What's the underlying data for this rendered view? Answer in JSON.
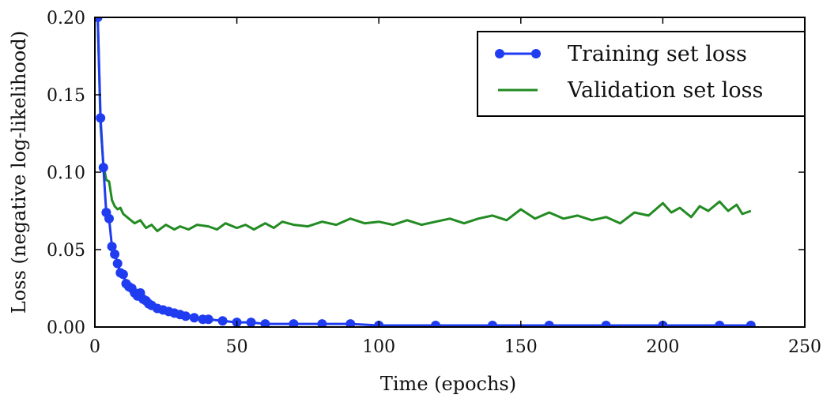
{
  "chart_data": {
    "type": "line",
    "title": "",
    "xlabel": "Time (epochs)",
    "ylabel": "Loss (negative log-likelihood)",
    "xlim": [
      0,
      250
    ],
    "ylim": [
      0.0,
      0.2
    ],
    "xticks": [
      "0",
      "50",
      "100",
      "150",
      "200",
      "250"
    ],
    "yticks": [
      "0.00",
      "0.05",
      "0.10",
      "0.15",
      "0.20"
    ],
    "grid": false,
    "legend_position": "top-right",
    "series": [
      {
        "name": "Training set loss",
        "color": "#1f3cf0",
        "marker": "circle",
        "x": [
          1,
          2,
          3,
          4,
          5,
          6,
          7,
          8,
          9,
          10,
          11,
          12,
          13,
          14,
          15,
          16,
          17,
          18,
          19,
          20,
          22,
          24,
          26,
          28,
          30,
          32,
          35,
          38,
          40,
          45,
          50,
          55,
          60,
          70,
          80,
          90,
          100,
          120,
          140,
          160,
          180,
          200,
          220,
          231
        ],
        "y": [
          0.2,
          0.135,
          0.103,
          0.074,
          0.07,
          0.052,
          0.047,
          0.041,
          0.035,
          0.034,
          0.028,
          0.026,
          0.025,
          0.022,
          0.02,
          0.022,
          0.018,
          0.017,
          0.015,
          0.014,
          0.012,
          0.011,
          0.01,
          0.009,
          0.008,
          0.007,
          0.006,
          0.005,
          0.005,
          0.004,
          0.003,
          0.003,
          0.002,
          0.002,
          0.002,
          0.002,
          0.001,
          0.001,
          0.001,
          0.001,
          0.001,
          0.001,
          0.001,
          0.001
        ]
      },
      {
        "name": "Validation set loss",
        "color": "#228b22",
        "marker": "none",
        "x": [
          1,
          2,
          3,
          4,
          5,
          6,
          7,
          8,
          9,
          10,
          12,
          14,
          16,
          18,
          20,
          22,
          25,
          28,
          30,
          33,
          36,
          40,
          43,
          46,
          50,
          53,
          56,
          60,
          63,
          66,
          70,
          75,
          80,
          85,
          90,
          95,
          100,
          105,
          110,
          115,
          120,
          125,
          130,
          135,
          140,
          145,
          150,
          155,
          160,
          165,
          170,
          175,
          180,
          185,
          190,
          195,
          200,
          203,
          206,
          210,
          213,
          216,
          220,
          223,
          226,
          228,
          231
        ],
        "y": [
          0.2,
          0.13,
          0.105,
          0.095,
          0.094,
          0.082,
          0.078,
          0.076,
          0.077,
          0.073,
          0.07,
          0.067,
          0.069,
          0.064,
          0.066,
          0.062,
          0.066,
          0.063,
          0.065,
          0.063,
          0.066,
          0.065,
          0.063,
          0.067,
          0.064,
          0.066,
          0.063,
          0.067,
          0.064,
          0.068,
          0.066,
          0.065,
          0.068,
          0.066,
          0.07,
          0.067,
          0.068,
          0.066,
          0.069,
          0.066,
          0.068,
          0.07,
          0.067,
          0.07,
          0.072,
          0.069,
          0.076,
          0.07,
          0.074,
          0.07,
          0.072,
          0.069,
          0.071,
          0.067,
          0.074,
          0.072,
          0.08,
          0.074,
          0.077,
          0.071,
          0.078,
          0.075,
          0.081,
          0.075,
          0.079,
          0.073,
          0.075
        ]
      }
    ]
  }
}
